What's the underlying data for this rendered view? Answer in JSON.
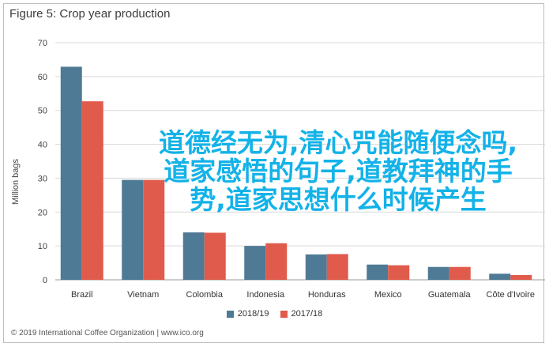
{
  "overlay_text": "道德经无为,清心咒能随便念吗,道家感悟的句子,道教拜神的手势,道家思想什么时候产生",
  "source_text": "© 2019 International Coffee Organization | www.ico.org",
  "chart_data": {
    "type": "bar",
    "title": "Figure 5: Crop year production",
    "ylabel": "Million bags",
    "xlabel": "",
    "ylim": [
      0,
      70
    ],
    "yticks": [
      0,
      10,
      20,
      30,
      40,
      50,
      60,
      70
    ],
    "grid": true,
    "legend_position": "bottom",
    "categories": [
      "Brazil",
      "Vietnam",
      "Colombia",
      "Indonesia",
      "Honduras",
      "Mexico",
      "Guatemala",
      "Côte d'Ivoire"
    ],
    "series": [
      {
        "name": "2018/19",
        "color": "#4f7a95",
        "values": [
          62.9,
          29.5,
          14.0,
          10.0,
          7.5,
          4.5,
          3.8,
          1.8
        ]
      },
      {
        "name": "2017/18",
        "color": "#e05b4c",
        "values": [
          52.7,
          29.5,
          13.9,
          10.8,
          7.6,
          4.3,
          3.8,
          1.4
        ]
      }
    ]
  }
}
